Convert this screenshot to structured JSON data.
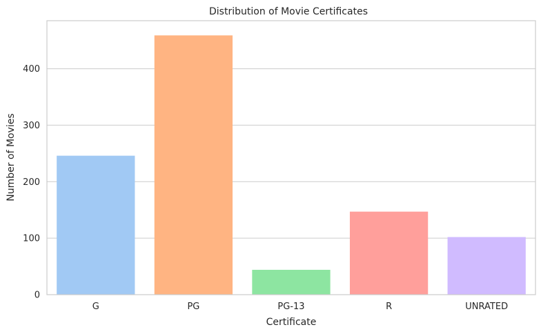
{
  "chart_data": {
    "type": "bar",
    "title": "Distribution of Movie Certificates",
    "xlabel": "Certificate",
    "ylabel": "Number of Movies",
    "categories": [
      "G",
      "PG",
      "PG-13",
      "R",
      "UNRATED"
    ],
    "values": [
      246,
      459,
      44,
      147,
      102
    ],
    "ylim": [
      0,
      485
    ],
    "yticks": [
      0,
      100,
      200,
      300,
      400
    ],
    "grid": "horizontal",
    "colors": [
      "#a1c9f4",
      "#ffb482",
      "#8de5a1",
      "#ff9f9b",
      "#d0bbff"
    ]
  }
}
